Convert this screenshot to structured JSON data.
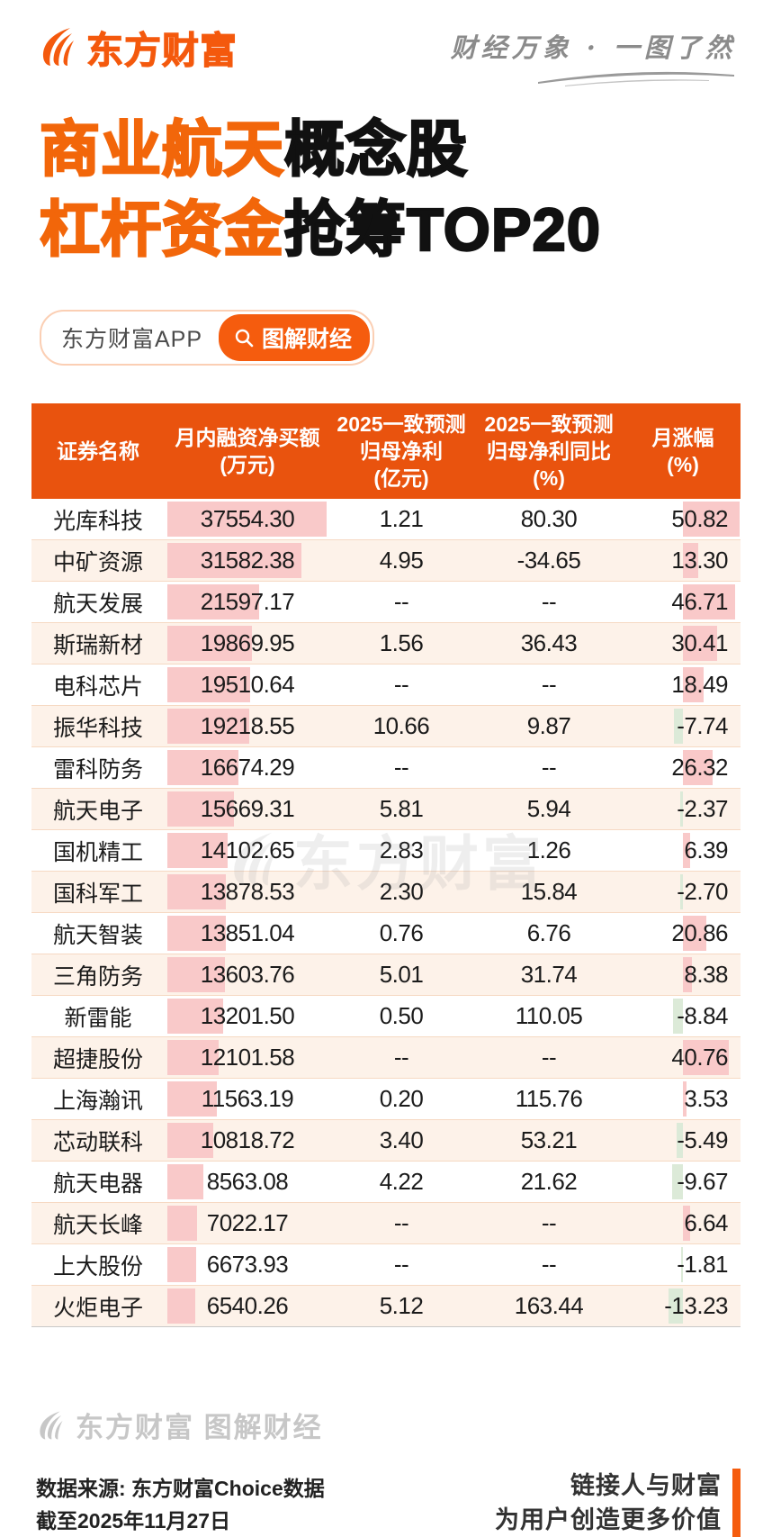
{
  "brand": {
    "logo_text": "东方财富",
    "slogan": "财经万象 · 一图了然"
  },
  "title": {
    "line1_highlight": "商业航天",
    "line1_rest": "概念股",
    "line2_highlight": "杠杆资金",
    "line2_rest": "抢筹TOP20"
  },
  "badges": {
    "app_label": "东方财富APP",
    "channel_label": "图解财经"
  },
  "table": {
    "columns": [
      {
        "lines": [
          "证券名称"
        ]
      },
      {
        "lines": [
          "月内融资净买额",
          "(万元)"
        ]
      },
      {
        "lines": [
          "2025一致预测",
          "归母净利",
          "(亿元)"
        ]
      },
      {
        "lines": [
          "2025一致预测",
          "归母净利同比",
          "(%)"
        ]
      },
      {
        "lines": [
          "月涨幅",
          "(%)"
        ]
      }
    ],
    "rows": [
      {
        "name": "光库科技",
        "net_buy": "37554.30",
        "profit": "1.21",
        "yoy": "80.30",
        "chg": "50.82"
      },
      {
        "name": "中矿资源",
        "net_buy": "31582.38",
        "profit": "4.95",
        "yoy": "-34.65",
        "chg": "13.30"
      },
      {
        "name": "航天发展",
        "net_buy": "21597.17",
        "profit": "--",
        "yoy": "--",
        "chg": "46.71"
      },
      {
        "name": "斯瑞新材",
        "net_buy": "19869.95",
        "profit": "1.56",
        "yoy": "36.43",
        "chg": "30.41"
      },
      {
        "name": "电科芯片",
        "net_buy": "19510.64",
        "profit": "--",
        "yoy": "--",
        "chg": "18.49"
      },
      {
        "name": "振华科技",
        "net_buy": "19218.55",
        "profit": "10.66",
        "yoy": "9.87",
        "chg": "-7.74"
      },
      {
        "name": "雷科防务",
        "net_buy": "16674.29",
        "profit": "--",
        "yoy": "--",
        "chg": "26.32"
      },
      {
        "name": "航天电子",
        "net_buy": "15669.31",
        "profit": "5.81",
        "yoy": "5.94",
        "chg": "-2.37"
      },
      {
        "name": "国机精工",
        "net_buy": "14102.65",
        "profit": "2.83",
        "yoy": "1.26",
        "chg": "6.39"
      },
      {
        "name": "国科军工",
        "net_buy": "13878.53",
        "profit": "2.30",
        "yoy": "15.84",
        "chg": "-2.70"
      },
      {
        "name": "航天智装",
        "net_buy": "13851.04",
        "profit": "0.76",
        "yoy": "6.76",
        "chg": "20.86"
      },
      {
        "name": "三角防务",
        "net_buy": "13603.76",
        "profit": "5.01",
        "yoy": "31.74",
        "chg": "8.38"
      },
      {
        "name": "新雷能",
        "net_buy": "13201.50",
        "profit": "0.50",
        "yoy": "110.05",
        "chg": "-8.84"
      },
      {
        "name": "超捷股份",
        "net_buy": "12101.58",
        "profit": "--",
        "yoy": "--",
        "chg": "40.76"
      },
      {
        "name": "上海瀚讯",
        "net_buy": "11563.19",
        "profit": "0.20",
        "yoy": "115.76",
        "chg": "3.53"
      },
      {
        "name": "芯动联科",
        "net_buy": "10818.72",
        "profit": "3.40",
        "yoy": "53.21",
        "chg": "-5.49"
      },
      {
        "name": "航天电器",
        "net_buy": "8563.08",
        "profit": "4.22",
        "yoy": "21.62",
        "chg": "-9.67"
      },
      {
        "name": "航天长峰",
        "net_buy": "7022.17",
        "profit": "--",
        "yoy": "--",
        "chg": "6.64"
      },
      {
        "name": "上大股份",
        "net_buy": "6673.93",
        "profit": "--",
        "yoy": "--",
        "chg": "-1.81"
      },
      {
        "name": "火炬电子",
        "net_buy": "6540.26",
        "profit": "5.12",
        "yoy": "163.44",
        "chg": "-13.23"
      }
    ]
  },
  "chart_data": {
    "type": "table",
    "title": "商业航天概念股杠杆资金抢筹TOP20",
    "categories": [
      "光库科技",
      "中矿资源",
      "航天发展",
      "斯瑞新材",
      "电科芯片",
      "振华科技",
      "雷科防务",
      "航天电子",
      "国机精工",
      "国科军工",
      "航天智装",
      "三角防务",
      "新雷能",
      "超捷股份",
      "上海瀚讯",
      "芯动联科",
      "航天电器",
      "航天长峰",
      "上大股份",
      "火炬电子"
    ],
    "series": [
      {
        "name": "月内融资净买额(万元)",
        "values": [
          37554.3,
          31582.38,
          21597.17,
          19869.95,
          19510.64,
          19218.55,
          16674.29,
          15669.31,
          14102.65,
          13878.53,
          13851.04,
          13603.76,
          13201.5,
          12101.58,
          11563.19,
          10818.72,
          8563.08,
          7022.17,
          6673.93,
          6540.26
        ]
      },
      {
        "name": "2025一致预测归母净利(亿元)",
        "values": [
          1.21,
          4.95,
          null,
          1.56,
          null,
          10.66,
          null,
          5.81,
          2.83,
          2.3,
          0.76,
          5.01,
          0.5,
          null,
          0.2,
          3.4,
          4.22,
          null,
          null,
          5.12
        ]
      },
      {
        "name": "2025一致预测归母净利同比(%)",
        "values": [
          80.3,
          -34.65,
          null,
          36.43,
          null,
          9.87,
          null,
          5.94,
          1.26,
          15.84,
          6.76,
          31.74,
          110.05,
          null,
          115.76,
          53.21,
          21.62,
          null,
          null,
          163.44
        ]
      },
      {
        "name": "月涨幅(%)",
        "values": [
          50.82,
          13.3,
          46.71,
          30.41,
          18.49,
          -7.74,
          26.32,
          -2.37,
          6.39,
          -2.7,
          20.86,
          8.38,
          -8.84,
          40.76,
          3.53,
          -5.49,
          -9.67,
          6.64,
          -1.81,
          -13.23
        ]
      }
    ]
  },
  "watermark": {
    "center_text": "东方财富"
  },
  "footer": {
    "watermark_text": "东方财富 图解财经",
    "source_line1": "数据来源: 东方财富Choice数据",
    "source_line2": "截至2025年11月27日",
    "slogan_line1": "链接人与财富",
    "slogan_line2": "为用户创造更多价值"
  },
  "colors": {
    "brand_orange": "#f4590d",
    "header_orange": "#e9530e",
    "positive_bar_pink": "#f9c9c9",
    "negative_bar_green": "#dcead8",
    "even_row_bg": "#fdf2e9"
  }
}
